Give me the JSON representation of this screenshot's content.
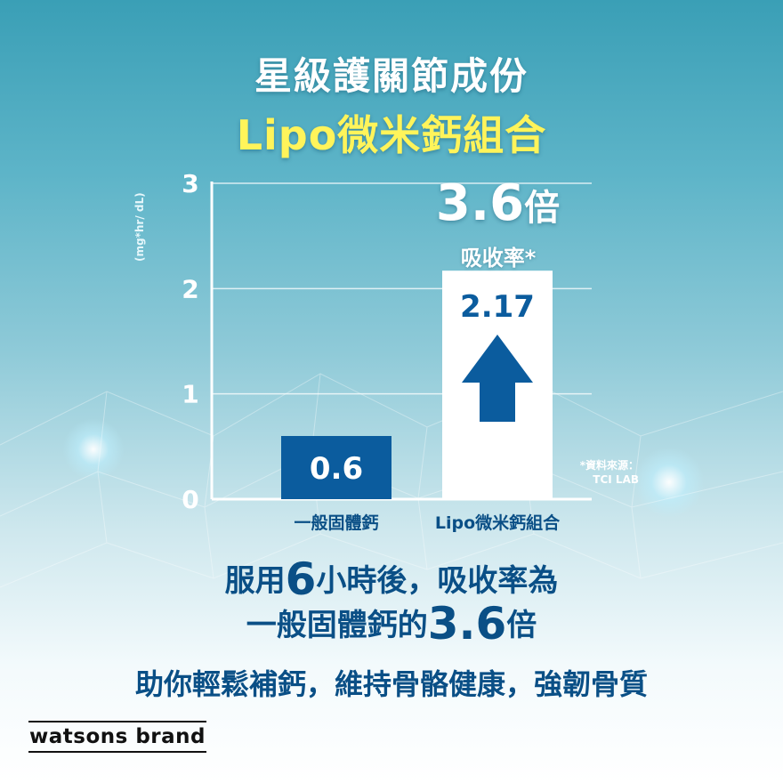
{
  "header": {
    "title": "星級護關節成份",
    "subtitle": "Lipo微米鈣組合"
  },
  "chart_data": {
    "type": "bar",
    "categories": [
      "一般固體鈣",
      "Lipo微米鈣組合"
    ],
    "values": [
      0.6,
      2.17
    ],
    "value_labels": [
      "0.6",
      "2.17"
    ],
    "ylabel": "(mg*hr/ dL)",
    "ylim": [
      0,
      3
    ],
    "yticks": [
      "0",
      "1",
      "2",
      "3"
    ],
    "grid": true,
    "bar_colors": [
      "#0b5c9e",
      "#ffffff"
    ],
    "value_label_colors": [
      "#ffffff",
      "#0b5c9e"
    ]
  },
  "annotation": {
    "multiplier": "3.6",
    "multiplier_unit": "倍",
    "subtitle": "吸收率*",
    "source_line1": "*資料來源：",
    "source_line2": "TCI LAB"
  },
  "message": {
    "line1_a": "服用",
    "line1_num": "6",
    "line1_b": "小時後，吸收率為",
    "line2_a": "一般固體鈣的",
    "line2_num": "3.6",
    "line2_b": "倍",
    "line3": "助你輕鬆補鈣，維持骨骼健康，強韌骨質"
  },
  "brand": {
    "logo_text": "watsons brand"
  },
  "colors": {
    "title_white": "#ffffff",
    "subtitle_yellow": "#fff45a",
    "primary_blue": "#0b5c9e",
    "text_blue": "#0a4f86"
  }
}
